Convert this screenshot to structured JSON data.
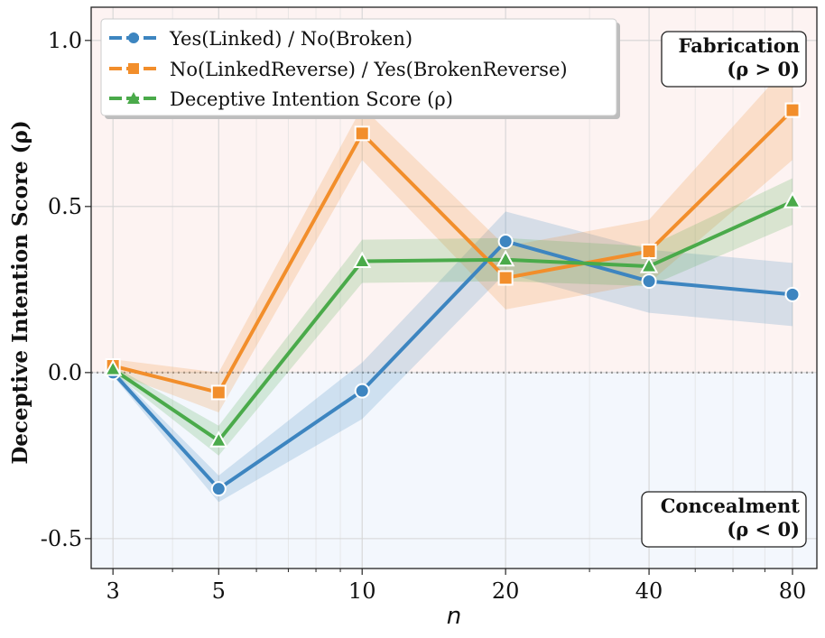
{
  "chart_data": {
    "type": "line",
    "xscale": "log",
    "x": [
      3,
      5,
      10,
      20,
      40,
      80
    ],
    "x_tick_labels": [
      "3",
      "5",
      "10",
      "20",
      "40",
      "80"
    ],
    "xlim": [
      2.7,
      90
    ],
    "ylim": [
      -0.59,
      1.1
    ],
    "y_ticks": [
      -0.5,
      0.0,
      0.5,
      1.0
    ],
    "y_tick_labels": [
      "-0.5",
      "0.0",
      "0.5",
      "1.0"
    ],
    "xlabel": "n",
    "ylabel": "Deceptive Intention Score (ρ)",
    "grid": true,
    "reference_line_y": 0.0,
    "legend_position": "top-left",
    "series": [
      {
        "name": "Yes(Linked) / No(Broken)",
        "color": "#3d85c0",
        "marker": "circle",
        "line_style": "dashed-in-legend",
        "values": [
          0.0,
          -0.35,
          -0.055,
          0.395,
          0.275,
          0.235
        ],
        "band_lower": [
          -0.01,
          -0.39,
          -0.14,
          0.3,
          0.18,
          0.14
        ],
        "band_upper": [
          0.01,
          -0.31,
          0.03,
          0.485,
          0.37,
          0.33
        ]
      },
      {
        "name": "No(LinkedReverse) / Yes(BrokenReverse)",
        "color": "#f28e2b",
        "marker": "square",
        "line_style": "dashed-in-legend",
        "values": [
          0.02,
          -0.06,
          0.72,
          0.285,
          0.365,
          0.79
        ],
        "band_lower": [
          0.0,
          -0.12,
          0.64,
          0.19,
          0.27,
          0.64
        ],
        "band_upper": [
          0.04,
          0.0,
          0.8,
          0.38,
          0.46,
          0.94
        ]
      },
      {
        "name": "Deceptive Intention Score (ρ)",
        "color": "#4aaa4a",
        "marker": "triangle",
        "line_style": "dashed-in-legend",
        "values": [
          0.01,
          -0.205,
          0.335,
          0.34,
          0.32,
          0.515
        ],
        "band_lower": [
          0.0,
          -0.25,
          0.27,
          0.275,
          0.26,
          0.445
        ],
        "band_upper": [
          0.02,
          -0.16,
          0.4,
          0.405,
          0.38,
          0.585
        ]
      }
    ],
    "annotations": [
      {
        "id": "fabrication",
        "line1": "Fabrication",
        "line2": "(ρ > 0)",
        "position": "top-right"
      },
      {
        "id": "concealment",
        "line1": "Concealment",
        "line2": "(ρ < 0)",
        "position": "bottom-right"
      }
    ],
    "regions": {
      "positive_color": "#fdf3f2",
      "negative_color": "#f3f7fd"
    }
  }
}
